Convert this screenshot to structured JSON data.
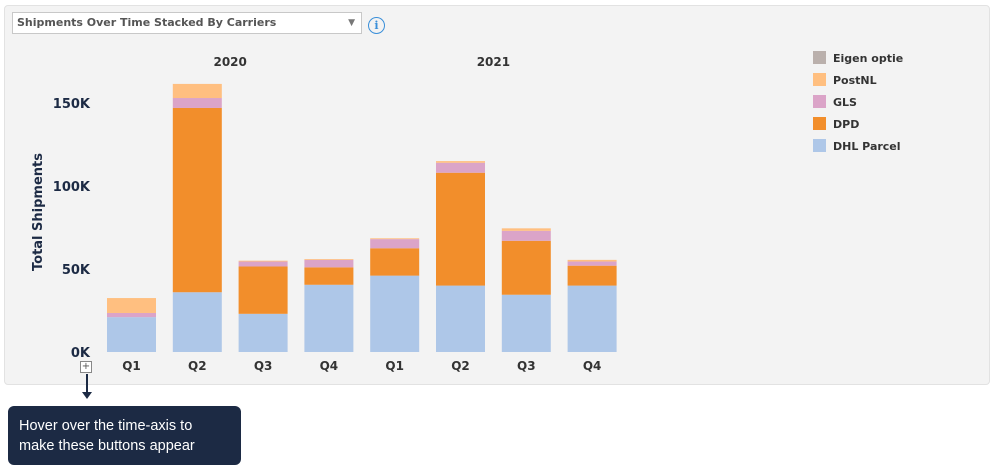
{
  "dropdown": {
    "selected": "Shipments Over Time Stacked By Carriers"
  },
  "info_icon": "info-icon",
  "expand_button": "+",
  "tooltip": {
    "line1": "Hover over the time-axis to",
    "line2": "make these buttons appear"
  },
  "chart_data": {
    "type": "bar",
    "stacked": true,
    "ylabel": "Total Shipments",
    "ylim": [
      0,
      160000
    ],
    "yticks": [
      0,
      50000,
      100000,
      150000
    ],
    "ytick_labels": [
      "0K",
      "50K",
      "100K",
      "150K"
    ],
    "groups": [
      "2020",
      "2021"
    ],
    "categories": [
      "Q1",
      "Q2",
      "Q3",
      "Q4",
      "Q1",
      "Q2",
      "Q3",
      "Q4"
    ],
    "legend_position": "top-right",
    "series": [
      {
        "name": "DHL Parcel",
        "color": "#aec7e8",
        "values": [
          21000,
          36000,
          23000,
          40500,
          46000,
          40000,
          34500,
          40000
        ]
      },
      {
        "name": "DPD",
        "color": "#f28e2b",
        "values": [
          0,
          111000,
          28500,
          10500,
          16500,
          68000,
          32500,
          12000
        ]
      },
      {
        "name": "GLS",
        "color": "#dba4c8",
        "values": [
          2500,
          6000,
          3000,
          4500,
          5500,
          6000,
          6000,
          2500
        ]
      },
      {
        "name": "PostNL",
        "color": "#ffbf80",
        "values": [
          9000,
          8500,
          500,
          500,
          500,
          1000,
          1500,
          1000
        ]
      },
      {
        "name": "Eigen optie",
        "color": "#bab0ac",
        "values": [
          0,
          0,
          0,
          0,
          0,
          0,
          0,
          0
        ]
      }
    ]
  }
}
